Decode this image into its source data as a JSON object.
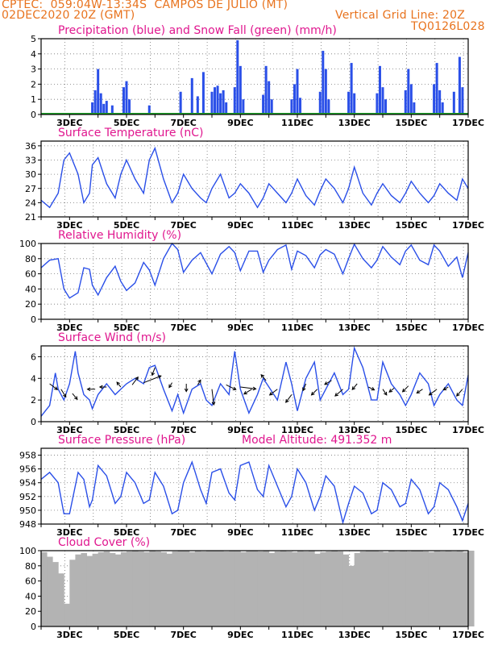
{
  "header": {
    "line1": "CPTEC:  059:04W-13:34S  CAMPOS DE JULIO (MT)",
    "line2_left": "02DEC2020 20Z (GMT)",
    "line2_right": "Vertical Grid Line: 20Z",
    "code": "TQ0126L028"
  },
  "colors": {
    "header": "#e8731e",
    "title": "#e0178f",
    "line": "#2a4fe8",
    "green": "#1fa32a",
    "cloud": "#b3b3b3",
    "arrow": "#000000"
  },
  "x_ticks": [
    "3DEC",
    "5DEC",
    "7DEC",
    "9DEC",
    "11DEC",
    "13DEC",
    "15DEC",
    "17DEC"
  ],
  "chart_data": [
    {
      "id": "precip",
      "type": "bar",
      "title": "Precipitation (blue) and Snow Fall (green) (mm/h)",
      "ylim": [
        0,
        5
      ],
      "yticks": [
        0,
        1,
        2,
        3,
        4,
        5
      ],
      "series": [
        {
          "name": "Precipitation",
          "color": "blue",
          "x": [
            3.8,
            3.9,
            4.0,
            4.1,
            4.2,
            4.3,
            4.5,
            4.9,
            5.0,
            5.1,
            5.8,
            6.9,
            7.3,
            7.5,
            7.7,
            8.0,
            8.1,
            8.2,
            8.3,
            8.4,
            8.5,
            8.8,
            8.9,
            9.0,
            9.1,
            9.8,
            9.9,
            10.0,
            10.1,
            10.8,
            10.9,
            11.0,
            11.1,
            11.8,
            11.9,
            12.0,
            12.1,
            12.8,
            12.9,
            13.0,
            13.8,
            13.9,
            14.0,
            14.1,
            14.8,
            14.9,
            15.0,
            15.1,
            15.8,
            15.9,
            16.0,
            16.1,
            16.5,
            16.7,
            16.8
          ],
          "values": [
            0.8,
            1.6,
            3.0,
            1.4,
            0.7,
            0.9,
            0.6,
            1.8,
            2.2,
            1.0,
            0.6,
            1.5,
            2.4,
            1.2,
            2.8,
            1.5,
            1.8,
            1.9,
            1.4,
            1.6,
            0.8,
            1.8,
            4.9,
            3.2,
            1.0,
            1.3,
            3.2,
            2.2,
            1.0,
            1.0,
            2.0,
            3.0,
            1.1,
            1.5,
            4.2,
            3.0,
            1.0,
            1.5,
            3.4,
            1.4,
            1.4,
            3.2,
            1.8,
            1.0,
            1.6,
            3.0,
            2.0,
            0.8,
            2.0,
            3.4,
            1.6,
            0.8,
            1.5,
            3.8,
            1.8
          ]
        },
        {
          "name": "Snow Fall",
          "color": "green",
          "x": [
            2.0,
            17.0
          ],
          "values": [
            0,
            0
          ]
        }
      ]
    },
    {
      "id": "temp",
      "type": "line",
      "title": "Surface Temperature (nC)",
      "ylim": [
        21,
        37
      ],
      "yticks": [
        21,
        24,
        27,
        30,
        33,
        36
      ],
      "x": [
        2.0,
        2.3,
        2.6,
        2.8,
        3.0,
        3.3,
        3.5,
        3.7,
        3.8,
        4.0,
        4.3,
        4.6,
        4.8,
        5.0,
        5.3,
        5.6,
        5.8,
        6.0,
        6.3,
        6.6,
        6.8,
        7.0,
        7.3,
        7.6,
        7.8,
        8.0,
        8.3,
        8.6,
        8.8,
        9.0,
        9.3,
        9.6,
        9.8,
        10.0,
        10.3,
        10.6,
        10.8,
        11.0,
        11.3,
        11.6,
        11.8,
        12.0,
        12.3,
        12.6,
        12.8,
        13.0,
        13.3,
        13.6,
        13.8,
        14.0,
        14.3,
        14.6,
        14.8,
        15.0,
        15.3,
        15.6,
        15.8,
        16.0,
        16.3,
        16.6,
        16.8,
        17.0
      ],
      "values": [
        24.5,
        23.0,
        26.0,
        33.0,
        34.5,
        30.0,
        24.0,
        26.0,
        32.0,
        33.5,
        28.0,
        25.0,
        30.0,
        33.0,
        29.0,
        26.0,
        33.0,
        35.5,
        29.0,
        24.0,
        26.0,
        30.0,
        27.0,
        25.0,
        24.0,
        27.0,
        30.0,
        25.0,
        26.0,
        28.0,
        26.0,
        23.0,
        25.0,
        28.0,
        26.0,
        24.0,
        26.0,
        29.0,
        25.5,
        23.5,
        26.5,
        29.0,
        27.0,
        24.0,
        27.0,
        31.5,
        26.0,
        23.5,
        26.0,
        28.0,
        25.5,
        24.0,
        26.0,
        28.5,
        26.0,
        24.0,
        25.5,
        28.0,
        26.0,
        24.5,
        29.0,
        27.0
      ]
    },
    {
      "id": "rh",
      "type": "line",
      "title": "Relative Humidity (%)",
      "ylim": [
        0,
        100
      ],
      "yticks": [
        0,
        20,
        40,
        60,
        80,
        100
      ],
      "x": [
        2.0,
        2.3,
        2.6,
        2.8,
        3.0,
        3.3,
        3.5,
        3.7,
        3.8,
        4.0,
        4.3,
        4.6,
        4.8,
        5.0,
        5.3,
        5.6,
        5.8,
        6.0,
        6.3,
        6.6,
        6.8,
        7.0,
        7.3,
        7.6,
        7.8,
        8.0,
        8.3,
        8.6,
        8.8,
        9.0,
        9.3,
        9.6,
        9.8,
        10.0,
        10.3,
        10.6,
        10.8,
        11.0,
        11.3,
        11.6,
        11.8,
        12.0,
        12.3,
        12.6,
        12.8,
        13.0,
        13.3,
        13.6,
        13.8,
        14.0,
        14.3,
        14.6,
        14.8,
        15.0,
        15.3,
        15.6,
        15.8,
        16.0,
        16.3,
        16.6,
        16.8,
        17.0
      ],
      "values": [
        68,
        78,
        80,
        40,
        28,
        35,
        68,
        66,
        45,
        32,
        55,
        70,
        50,
        38,
        48,
        75,
        65,
        45,
        80,
        100,
        92,
        62,
        78,
        88,
        74,
        60,
        86,
        96,
        88,
        64,
        90,
        90,
        62,
        78,
        92,
        98,
        66,
        90,
        84,
        68,
        85,
        92,
        86,
        60,
        80,
        99,
        80,
        68,
        78,
        96,
        82,
        72,
        90,
        98,
        78,
        72,
        98,
        90,
        70,
        82,
        55,
        88
      ]
    },
    {
      "id": "wind",
      "type": "line",
      "title": "Surface Wind (m/s)",
      "ylim": [
        0,
        7
      ],
      "yticks": [
        0,
        2,
        4,
        6
      ],
      "x": [
        2.0,
        2.3,
        2.5,
        2.6,
        2.8,
        3.0,
        3.2,
        3.3,
        3.5,
        3.7,
        3.8,
        4.0,
        4.3,
        4.6,
        4.8,
        5.0,
        5.3,
        5.6,
        5.8,
        6.0,
        6.3,
        6.6,
        6.8,
        7.0,
        7.3,
        7.6,
        7.8,
        8.0,
        8.3,
        8.6,
        8.8,
        9.0,
        9.3,
        9.6,
        9.8,
        10.0,
        10.3,
        10.6,
        10.8,
        11.0,
        11.3,
        11.6,
        11.8,
        12.0,
        12.3,
        12.6,
        12.8,
        13.0,
        13.3,
        13.6,
        13.8,
        14.0,
        14.3,
        14.6,
        14.8,
        15.0,
        15.3,
        15.6,
        15.8,
        16.0,
        16.3,
        16.6,
        16.8,
        17.0
      ],
      "values": [
        0.5,
        1.5,
        4.5,
        3.0,
        2.0,
        3.5,
        6.5,
        4.5,
        2.5,
        2.0,
        1.2,
        2.5,
        3.5,
        2.5,
        3.0,
        3.5,
        4.0,
        3.5,
        5.0,
        5.2,
        3.0,
        1.0,
        2.5,
        0.8,
        3.0,
        3.5,
        2.0,
        1.5,
        3.5,
        2.5,
        6.5,
        3.0,
        0.8,
        2.5,
        4.0,
        3.2,
        2.0,
        5.5,
        3.5,
        1.0,
        4.0,
        5.5,
        2.0,
        3.0,
        4.5,
        2.5,
        3.0,
        6.8,
        5.0,
        2.0,
        2.0,
        5.5,
        3.5,
        2.5,
        1.5,
        2.5,
        4.5,
        3.5,
        1.5,
        2.5,
        3.5,
        2.0,
        1.5,
        4.3
      ],
      "arrows": {
        "x": [
          2.3,
          2.7,
          3.1,
          3.9,
          4.3,
          4.8,
          5.2,
          5.6,
          6.0,
          6.6,
          7.1,
          7.5,
          8.0,
          8.5,
          9.0,
          9.4,
          9.9,
          10.3,
          10.8,
          11.3,
          11.7,
          12.2,
          12.6,
          13.1,
          13.5,
          14.0,
          14.4,
          14.9,
          15.4,
          15.9,
          16.3,
          16.8
        ],
        "y": [
          3.5,
          3.0,
          2.6,
          3.0,
          3.2,
          3.2,
          3.4,
          3.6,
          5.0,
          3.6,
          3.5,
          3.4,
          3.0,
          3.4,
          3.2,
          3.0,
          3.8,
          3.0,
          2.5,
          3.5,
          3.0,
          3.8,
          3.0,
          3.5,
          3.2,
          3.0,
          3.1,
          3.3,
          3.0,
          3.0,
          3.2,
          3.0
        ],
        "u": [
          0.8,
          0.5,
          0.5,
          -0.8,
          -0.7,
          -0.4,
          0.6,
          1.8,
          -0.3,
          -0.3,
          0.0,
          0.3,
          0.2,
          1.0,
          1.6,
          -0.8,
          -0.5,
          -0.8,
          -0.6,
          -0.3,
          -0.6,
          -0.7,
          -0.8,
          -0.5,
          0.6,
          0.4,
          -0.5,
          -0.6,
          -0.6,
          -0.8,
          -0.5,
          -0.6
        ],
        "v": [
          -0.6,
          -0.8,
          -0.6,
          0.0,
          0.0,
          0.5,
          0.8,
          0.7,
          -0.8,
          -0.5,
          -0.8,
          0.5,
          -1.6,
          -0.5,
          -0.2,
          -0.5,
          0.6,
          -0.6,
          -0.8,
          -0.7,
          -0.6,
          -0.4,
          -0.7,
          -0.6,
          -0.3,
          -0.6,
          -0.4,
          -0.6,
          -0.4,
          -0.6,
          -0.3,
          -0.7
        ]
      }
    },
    {
      "id": "pressure",
      "type": "line",
      "title": "Surface Pressure (hPa)",
      "annotation": "Model Altitude: 491.352 m",
      "ylim": [
        948,
        959
      ],
      "yticks": [
        948,
        950,
        952,
        954,
        956,
        958
      ],
      "x": [
        2.0,
        2.3,
        2.6,
        2.8,
        3.0,
        3.3,
        3.5,
        3.7,
        3.8,
        4.0,
        4.3,
        4.6,
        4.8,
        5.0,
        5.3,
        5.6,
        5.8,
        6.0,
        6.3,
        6.6,
        6.8,
        7.0,
        7.3,
        7.6,
        7.8,
        8.0,
        8.3,
        8.6,
        8.8,
        9.0,
        9.3,
        9.6,
        9.8,
        10.0,
        10.3,
        10.6,
        10.8,
        11.0,
        11.3,
        11.6,
        11.8,
        12.0,
        12.3,
        12.6,
        12.8,
        13.0,
        13.3,
        13.6,
        13.8,
        14.0,
        14.3,
        14.6,
        14.8,
        15.0,
        15.3,
        15.6,
        15.8,
        16.0,
        16.3,
        16.6,
        16.8,
        17.0
      ],
      "values": [
        954.5,
        955.5,
        954.0,
        949.5,
        949.5,
        955.5,
        954.5,
        950.5,
        951.5,
        956.5,
        955.0,
        951.0,
        952.0,
        955.5,
        954.0,
        951.0,
        951.5,
        955.5,
        953.5,
        949.5,
        950.0,
        954.0,
        957.0,
        953.0,
        951.0,
        955.5,
        956.0,
        952.5,
        951.5,
        956.5,
        957.0,
        953.0,
        952.0,
        956.5,
        953.5,
        950.5,
        952.0,
        956.0,
        954.0,
        950.0,
        952.0,
        955.0,
        953.5,
        948.2,
        951.0,
        953.5,
        952.5,
        949.5,
        950.0,
        954.0,
        953.0,
        950.5,
        951.0,
        954.5,
        953.0,
        949.5,
        950.5,
        954.0,
        953.0,
        950.5,
        948.5,
        951.0
      ]
    },
    {
      "id": "cloud",
      "type": "bar",
      "title": "Cloud Cover (%)",
      "ylim": [
        0,
        100
      ],
      "yticks": [
        0,
        20,
        40,
        60,
        80,
        100
      ],
      "x": [
        2.0,
        2.2,
        2.4,
        2.6,
        2.8,
        3.0,
        3.2,
        3.4,
        3.6,
        3.8,
        4.0,
        4.2,
        4.4,
        4.6,
        4.8,
        5.0,
        5.2,
        5.4,
        5.6,
        5.8,
        6.0,
        6.2,
        6.4,
        6.6,
        6.8,
        7.0,
        7.2,
        7.4,
        7.6,
        7.8,
        8.0,
        8.2,
        8.4,
        8.6,
        8.8,
        9.0,
        9.2,
        9.4,
        9.6,
        9.8,
        10.0,
        10.2,
        10.4,
        10.6,
        10.8,
        11.0,
        11.2,
        11.4,
        11.6,
        11.8,
        12.0,
        12.2,
        12.4,
        12.6,
        12.8,
        13.0,
        13.2,
        13.4,
        13.6,
        13.8,
        14.0,
        14.2,
        14.4,
        14.6,
        14.8,
        15.0,
        15.2,
        15.4,
        15.6,
        15.8,
        16.0,
        16.2,
        16.4,
        16.6,
        16.8,
        17.0
      ],
      "values": [
        98,
        92,
        85,
        70,
        30,
        88,
        95,
        97,
        93,
        96,
        98,
        99,
        97,
        95,
        98,
        99,
        100,
        99,
        98,
        100,
        99,
        98,
        96,
        99,
        100,
        100,
        98,
        100,
        99,
        100,
        100,
        100,
        99,
        100,
        100,
        98,
        100,
        100,
        99,
        100,
        97,
        99,
        100,
        99,
        98,
        100,
        99,
        100,
        96,
        98,
        99,
        100,
        99,
        95,
        80,
        97,
        99,
        100,
        100,
        99,
        98,
        100,
        99,
        100,
        99,
        100,
        100,
        99,
        98,
        100,
        99,
        100,
        99,
        100,
        98,
        100
      ]
    }
  ]
}
